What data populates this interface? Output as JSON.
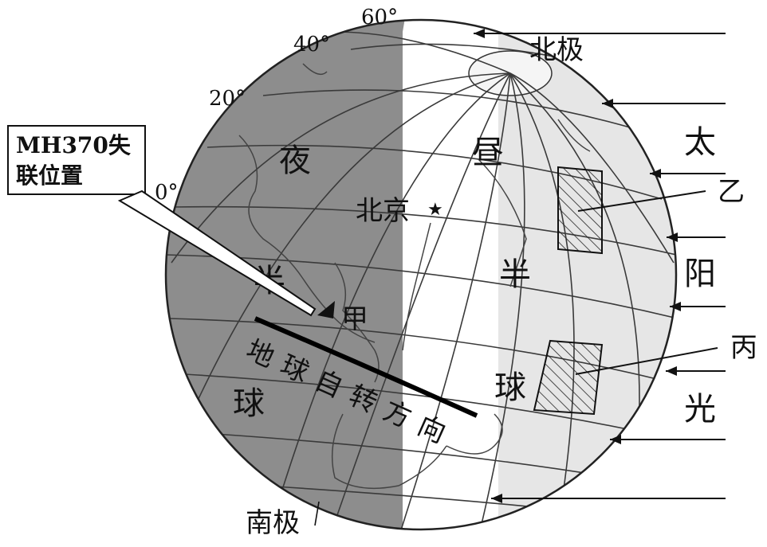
{
  "box_label_line1": "MH370失",
  "box_label_line2": "联位置",
  "degrees": {
    "d0": "0°",
    "d20": "20°",
    "d40": "40°",
    "d60": "60°"
  },
  "poles": {
    "north": "北极",
    "south": "南极"
  },
  "night": {
    "c1": "夜",
    "c2": "半",
    "c3": "球"
  },
  "day": {
    "c1": "昼",
    "c2": "半",
    "c3": "球"
  },
  "city": "北京",
  "points": {
    "jia": "甲",
    "yi": "乙",
    "bing": "丙"
  },
  "rotation_label": [
    "地",
    "球",
    "自",
    "转",
    "方",
    "向"
  ],
  "sunlight": {
    "c1": "太",
    "c2": "阳",
    "c3": "光"
  },
  "colors": {
    "night_shade": "#8d8d8d",
    "day_light": "#e6e6e6",
    "day_white": "#ffffff"
  }
}
